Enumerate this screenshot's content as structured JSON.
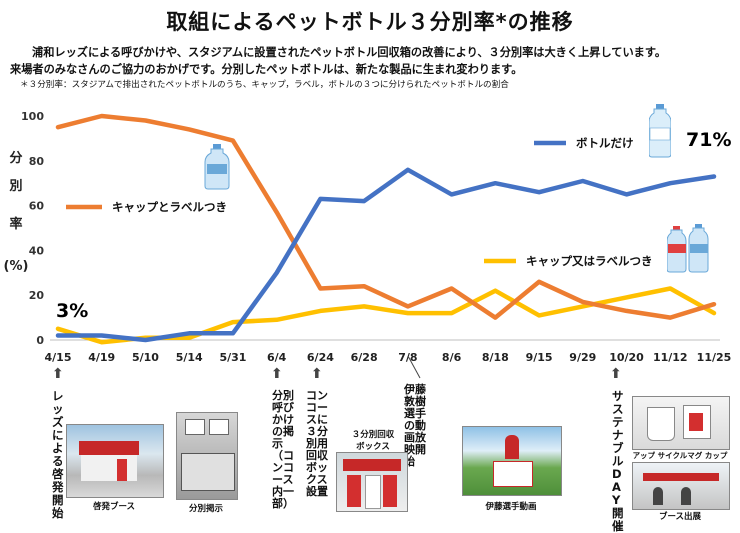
{
  "title": "取組によるペットボトル３分別率*の推移",
  "intro_line1": "浦和レッズによる呼びかけや、スタジアムに設置されたペットボトル回収箱の改善により、３分別率は大きく上昇しています。",
  "intro_line2": "来場者のみなさんのご協力のおかげです。分別したペットボトルは、新たな製品に生まれ変わります。",
  "footnote": "＊３分別率：スタジアムで排出されたペットボトルのうち、キャップ，ラベル，ボトルの３つに分けられたペットボトルの割合",
  "ylabel": [
    "分",
    "別",
    "率",
    "(%)"
  ],
  "chart_data": {
    "type": "line",
    "categories": [
      "4/15",
      "4/19",
      "5/10",
      "5/14",
      "5/31",
      "6/4",
      "6/24",
      "6/28",
      "7/8",
      "8/6",
      "8/18",
      "9/15",
      "9/29",
      "10/20",
      "11/12",
      "11/25"
    ],
    "y_ticks": [
      "0",
      "20",
      "40",
      "60",
      "80",
      "100"
    ],
    "ylim": [
      0,
      100
    ],
    "series": [
      {
        "name": "ボトルだけ",
        "color": "#4472C4",
        "values": [
          2,
          2,
          0,
          3,
          3,
          30,
          63,
          62,
          76,
          65,
          70,
          66,
          71,
          65,
          70,
          73
        ]
      },
      {
        "name": "キャップとラベルつき",
        "color": "#ED7D31",
        "values": [
          95,
          100,
          98,
          94,
          89,
          57,
          23,
          24,
          15,
          23,
          10,
          26,
          17,
          13,
          10,
          16
        ]
      },
      {
        "name": "キャップ又はラベルつき",
        "color": "#FFC000",
        "values": [
          5,
          -1,
          1,
          1,
          8,
          9,
          13,
          15,
          12,
          12,
          22,
          11,
          15,
          19,
          23,
          12
        ]
      }
    ],
    "annotations": {
      "start_value": "3%",
      "end_value": "71%"
    }
  },
  "events": {
    "e1": "レッズによる啓発開始",
    "e2": "分別呼びかけの掲示（コンコース内一部）",
    "e3": "コンコースに３分別用回収ボックス設置",
    "e4": "伊藤敦樹選手の動画放映開始",
    "e5": "サステナブルDAY開催"
  },
  "captions": {
    "booth": "啓発ブース",
    "signage": "分別掲示",
    "box": "３分別回収\nボックス",
    "video": "伊藤選手動画",
    "cup": "アップ サイクルマグ カップ",
    "booth2": "ブース出展"
  },
  "colors": {
    "blue": "#4472C4",
    "orange": "#ED7D31",
    "yellow": "#FFC000"
  }
}
